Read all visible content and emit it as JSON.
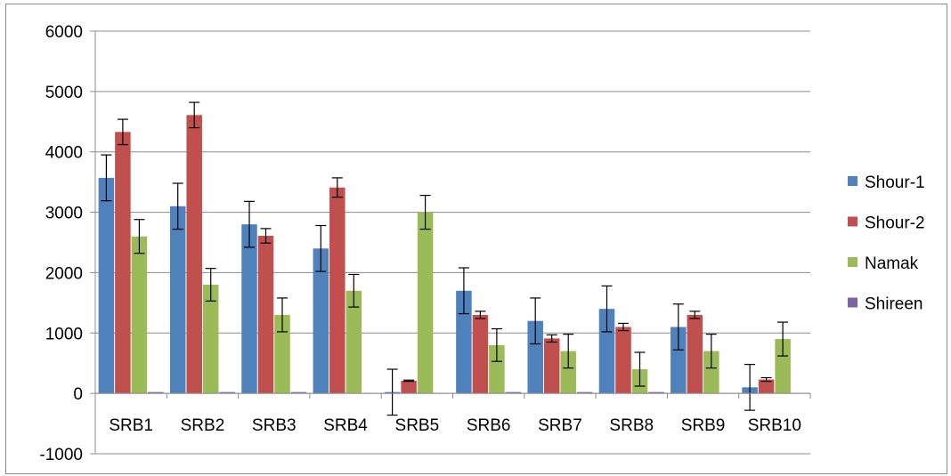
{
  "chart_data": {
    "type": "bar",
    "categories": [
      "SRB1",
      "SRB2",
      "SRB3",
      "SRB4",
      "SRB5",
      "SRB6",
      "SRB7",
      "SRB8",
      "SRB9",
      "SRB10"
    ],
    "series": [
      {
        "name": "Shour-1",
        "color": "#4F81BD",
        "values": [
          3570,
          3100,
          2800,
          2400,
          20,
          1700,
          1200,
          1400,
          1100,
          100
        ],
        "errors": [
          380,
          380,
          380,
          380,
          380,
          380,
          380,
          380,
          380,
          380
        ]
      },
      {
        "name": "Shour-2",
        "color": "#C0504D",
        "values": [
          4330,
          4610,
          2610,
          3410,
          210,
          1300,
          910,
          1100,
          1300,
          230
        ],
        "errors": [
          210,
          210,
          120,
          160,
          10,
          60,
          60,
          60,
          60,
          30
        ]
      },
      {
        "name": "Namak",
        "color": "#9BBB59",
        "values": [
          2600,
          1800,
          1300,
          1700,
          3000,
          800,
          700,
          400,
          700,
          900
        ],
        "errors": [
          280,
          270,
          280,
          270,
          280,
          270,
          280,
          280,
          280,
          280
        ]
      },
      {
        "name": "Shireen",
        "color": "#8064A2",
        "values": [
          10,
          10,
          10,
          0,
          0,
          10,
          10,
          10,
          0,
          0
        ],
        "errors": [
          0,
          0,
          0,
          0,
          0,
          0,
          0,
          0,
          0,
          0
        ]
      }
    ],
    "ylim": [
      -1000,
      6000
    ],
    "yticks": [
      "-1000",
      "0",
      "1000",
      "2000",
      "3000",
      "4000",
      "5000",
      "6000"
    ],
    "ytick_values": [
      -1000,
      0,
      1000,
      2000,
      3000,
      4000,
      5000,
      6000
    ],
    "grid": true,
    "legend_position": "right",
    "title": "",
    "xlabel": "",
    "ylabel": ""
  }
}
